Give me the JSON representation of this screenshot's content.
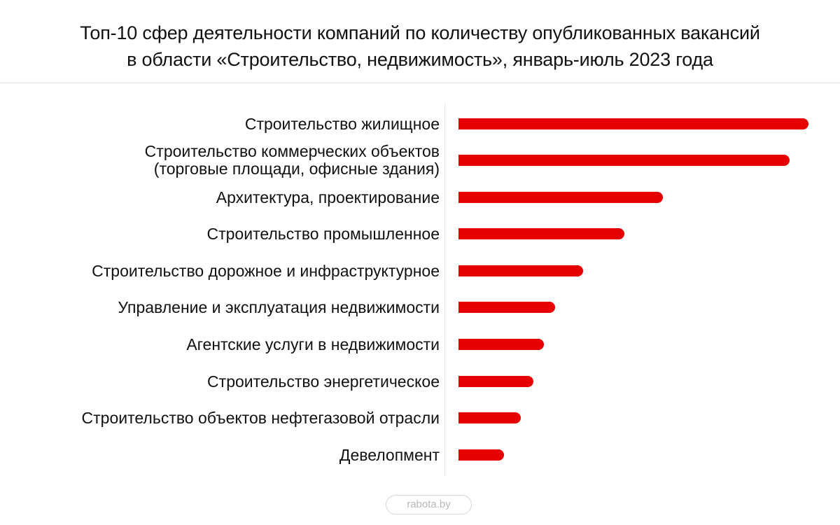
{
  "title": {
    "line1": "Топ-10 сфер деятельности компаний по количеству опубликованных вакансий",
    "line2": "в области «Строительство, недвижимость», январь-июль 2023 года"
  },
  "colors": {
    "bar": "#e60000",
    "axis": "#e6e6e6",
    "text": "#111111"
  },
  "source_badge": "rabota.by",
  "chart_data": {
    "type": "bar",
    "orientation": "horizontal",
    "title": "Топ-10 сфер деятельности компаний по количеству опубликованных вакансий в области «Строительство, недвижимость», январь-июль 2023 года",
    "xlabel": "",
    "ylabel": "",
    "value_unit": "relative bar length (px); no numeric axis or data labels shown",
    "grid": false,
    "legend": null,
    "categories": [
      "Строительство жилищное",
      "Строительство коммерческих объектов (торговые площади, офисные здания)",
      "Архитектура, проектирование",
      "Строительство промышленное",
      "Строительство дорожное и инфраструктурное",
      "Управление и эксплуатация недвижимости",
      "Агентские услуги в недвижимости",
      "Строительство энергетическое",
      "Строительство объектов нефтегазовой отрасли",
      "Девелопмент"
    ],
    "values": [
      500,
      473,
      292,
      237,
      178,
      138,
      122,
      107,
      89,
      65
    ],
    "rows": [
      {
        "label_lines": [
          "Строительство жилищное"
        ],
        "value": 500
      },
      {
        "label_lines": [
          "Строительство коммерческих объектов",
          "(торговые площади, офисные здания)"
        ],
        "value": 473
      },
      {
        "label_lines": [
          "Архитектура, проектирование"
        ],
        "value": 292
      },
      {
        "label_lines": [
          "Строительство промышленное"
        ],
        "value": 237
      },
      {
        "label_lines": [
          "Строительство дорожное и инфраструктурное"
        ],
        "value": 178
      },
      {
        "label_lines": [
          "Управление и эксплуатация недвижимости"
        ],
        "value": 138
      },
      {
        "label_lines": [
          "Агентские услуги в недвижимости"
        ],
        "value": 122
      },
      {
        "label_lines": [
          "Строительство энергетическое"
        ],
        "value": 107
      },
      {
        "label_lines": [
          "Строительство объектов нефтегазовой отрасли"
        ],
        "value": 89
      },
      {
        "label_lines": [
          "Девелопмент"
        ],
        "value": 65
      }
    ]
  }
}
